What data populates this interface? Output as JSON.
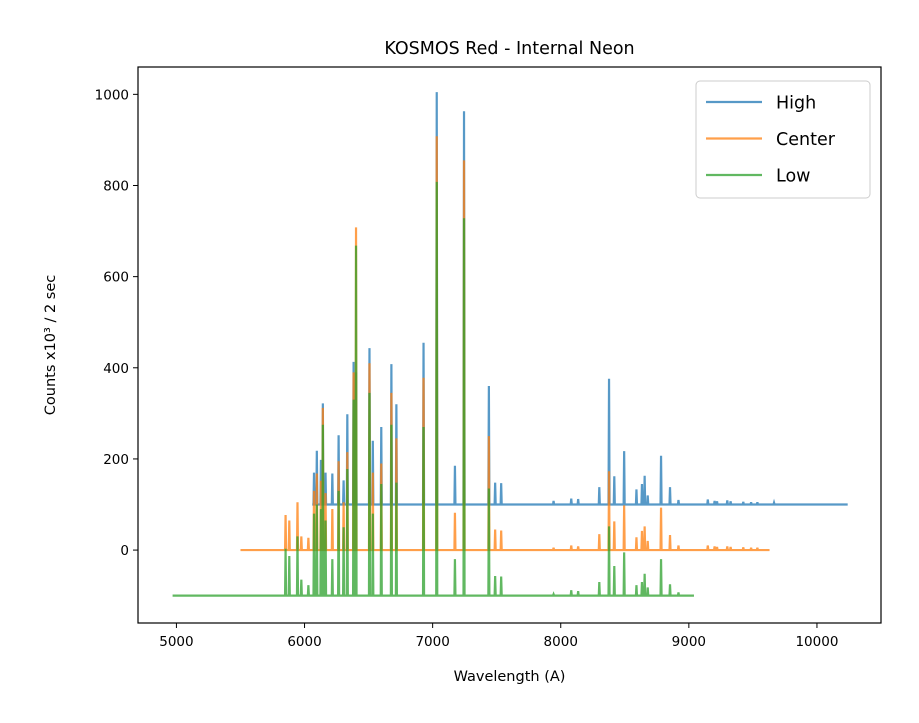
{
  "chart_data": {
    "type": "line",
    "title": "KOSMOS Red - Internal Neon",
    "xlabel": "Wavelength (A)",
    "ylabel": "Counts x10³ / 2 sec",
    "xlim": [
      4700,
      10500
    ],
    "ylim": [
      -160,
      1060
    ],
    "xticks": [
      5000,
      6000,
      7000,
      8000,
      9000,
      10000
    ],
    "yticks": [
      0,
      200,
      400,
      600,
      800,
      1000
    ],
    "grid": false,
    "legend_position": "top-right",
    "series": [
      {
        "name": "High",
        "color": "#1f77b4",
        "x_range": [
          6060,
          10240
        ],
        "baseline": 100,
        "peaks": [
          [
            6074,
            170
          ],
          [
            6096,
            218
          ],
          [
            6128,
            198
          ],
          [
            6143,
            322
          ],
          [
            6164,
            170
          ],
          [
            6217,
            168
          ],
          [
            6266,
            252
          ],
          [
            6305,
            153
          ],
          [
            6334,
            298
          ],
          [
            6383,
            413
          ],
          [
            6402,
            390
          ],
          [
            6507,
            443
          ],
          [
            6533,
            240
          ],
          [
            6599,
            270
          ],
          [
            6678,
            408
          ],
          [
            6717,
            320
          ],
          [
            6929,
            455
          ],
          [
            7032,
            1005
          ],
          [
            7174,
            185
          ],
          [
            7245,
            963
          ],
          [
            7439,
            360
          ],
          [
            7488,
            148
          ],
          [
            7535,
            147
          ],
          [
            7944,
            108
          ],
          [
            8082,
            113
          ],
          [
            8136,
            112
          ],
          [
            8301,
            138
          ],
          [
            8377,
            376
          ],
          [
            8418,
            162
          ],
          [
            8495,
            217
          ],
          [
            8591,
            133
          ],
          [
            8634,
            145
          ],
          [
            8655,
            163
          ],
          [
            8679,
            120
          ],
          [
            8783,
            207
          ],
          [
            8853,
            138
          ],
          [
            8919,
            110
          ],
          [
            9148,
            111
          ],
          [
            9201,
            108
          ],
          [
            9220,
            107
          ],
          [
            9300,
            109
          ],
          [
            9326,
            107
          ],
          [
            9425,
            106
          ],
          [
            9486,
            105
          ],
          [
            9535,
            105
          ],
          [
            9665,
            104
          ]
        ]
      },
      {
        "name": "Center",
        "color": "#ff7f0e",
        "x_range": [
          5500,
          9630
        ],
        "baseline": 0,
        "peaks": [
          [
            5852,
            77
          ],
          [
            5881,
            65
          ],
          [
            5945,
            105
          ],
          [
            5975,
            30
          ],
          [
            6030,
            27
          ],
          [
            6074,
            130
          ],
          [
            6096,
            168
          ],
          [
            6128,
            152
          ],
          [
            6143,
            312
          ],
          [
            6164,
            125
          ],
          [
            6217,
            90
          ],
          [
            6266,
            195
          ],
          [
            6305,
            105
          ],
          [
            6334,
            215
          ],
          [
            6383,
            390
          ],
          [
            6402,
            708
          ],
          [
            6507,
            410
          ],
          [
            6533,
            170
          ],
          [
            6599,
            190
          ],
          [
            6678,
            345
          ],
          [
            6717,
            245
          ],
          [
            6929,
            378
          ],
          [
            7032,
            908
          ],
          [
            7174,
            82
          ],
          [
            7245,
            855
          ],
          [
            7439,
            250
          ],
          [
            7488,
            45
          ],
          [
            7535,
            43
          ],
          [
            7944,
            5
          ],
          [
            8082,
            10
          ],
          [
            8136,
            8
          ],
          [
            8301,
            35
          ],
          [
            8377,
            173
          ],
          [
            8418,
            63
          ],
          [
            8495,
            98
          ],
          [
            8591,
            28
          ],
          [
            8634,
            42
          ],
          [
            8655,
            52
          ],
          [
            8679,
            20
          ],
          [
            8783,
            93
          ],
          [
            8853,
            33
          ],
          [
            8919,
            10
          ],
          [
            9148,
            10
          ],
          [
            9201,
            8
          ],
          [
            9220,
            7
          ],
          [
            9300,
            8
          ],
          [
            9326,
            7
          ],
          [
            9425,
            6
          ],
          [
            9486,
            5
          ],
          [
            9535,
            5
          ]
        ]
      },
      {
        "name": "Low",
        "color": "#2ca02c",
        "x_range": [
          4970,
          9040
        ],
        "baseline": -100,
        "peaks": [
          [
            5852,
            3
          ],
          [
            5881,
            -13
          ],
          [
            5945,
            30
          ],
          [
            5975,
            -65
          ],
          [
            6030,
            -77
          ],
          [
            6074,
            80
          ],
          [
            6096,
            100
          ],
          [
            6128,
            90
          ],
          [
            6143,
            275
          ],
          [
            6164,
            65
          ],
          [
            6217,
            -20
          ],
          [
            6266,
            130
          ],
          [
            6305,
            50
          ],
          [
            6334,
            178
          ],
          [
            6383,
            330
          ],
          [
            6402,
            668
          ],
          [
            6507,
            345
          ],
          [
            6533,
            80
          ],
          [
            6599,
            145
          ],
          [
            6678,
            275
          ],
          [
            6717,
            148
          ],
          [
            6929,
            270
          ],
          [
            7032,
            808
          ],
          [
            7174,
            -20
          ],
          [
            7245,
            728
          ],
          [
            7439,
            135
          ],
          [
            7488,
            -57
          ],
          [
            7535,
            -58
          ],
          [
            7944,
            -97
          ],
          [
            8082,
            -88
          ],
          [
            8136,
            -90
          ],
          [
            8301,
            -70
          ],
          [
            8377,
            52
          ],
          [
            8418,
            -35
          ],
          [
            8495,
            -5
          ],
          [
            8591,
            -77
          ],
          [
            8634,
            -70
          ],
          [
            8655,
            -52
          ],
          [
            8679,
            -82
          ],
          [
            8783,
            -20
          ],
          [
            8853,
            -75
          ],
          [
            8919,
            -93
          ]
        ]
      }
    ]
  }
}
